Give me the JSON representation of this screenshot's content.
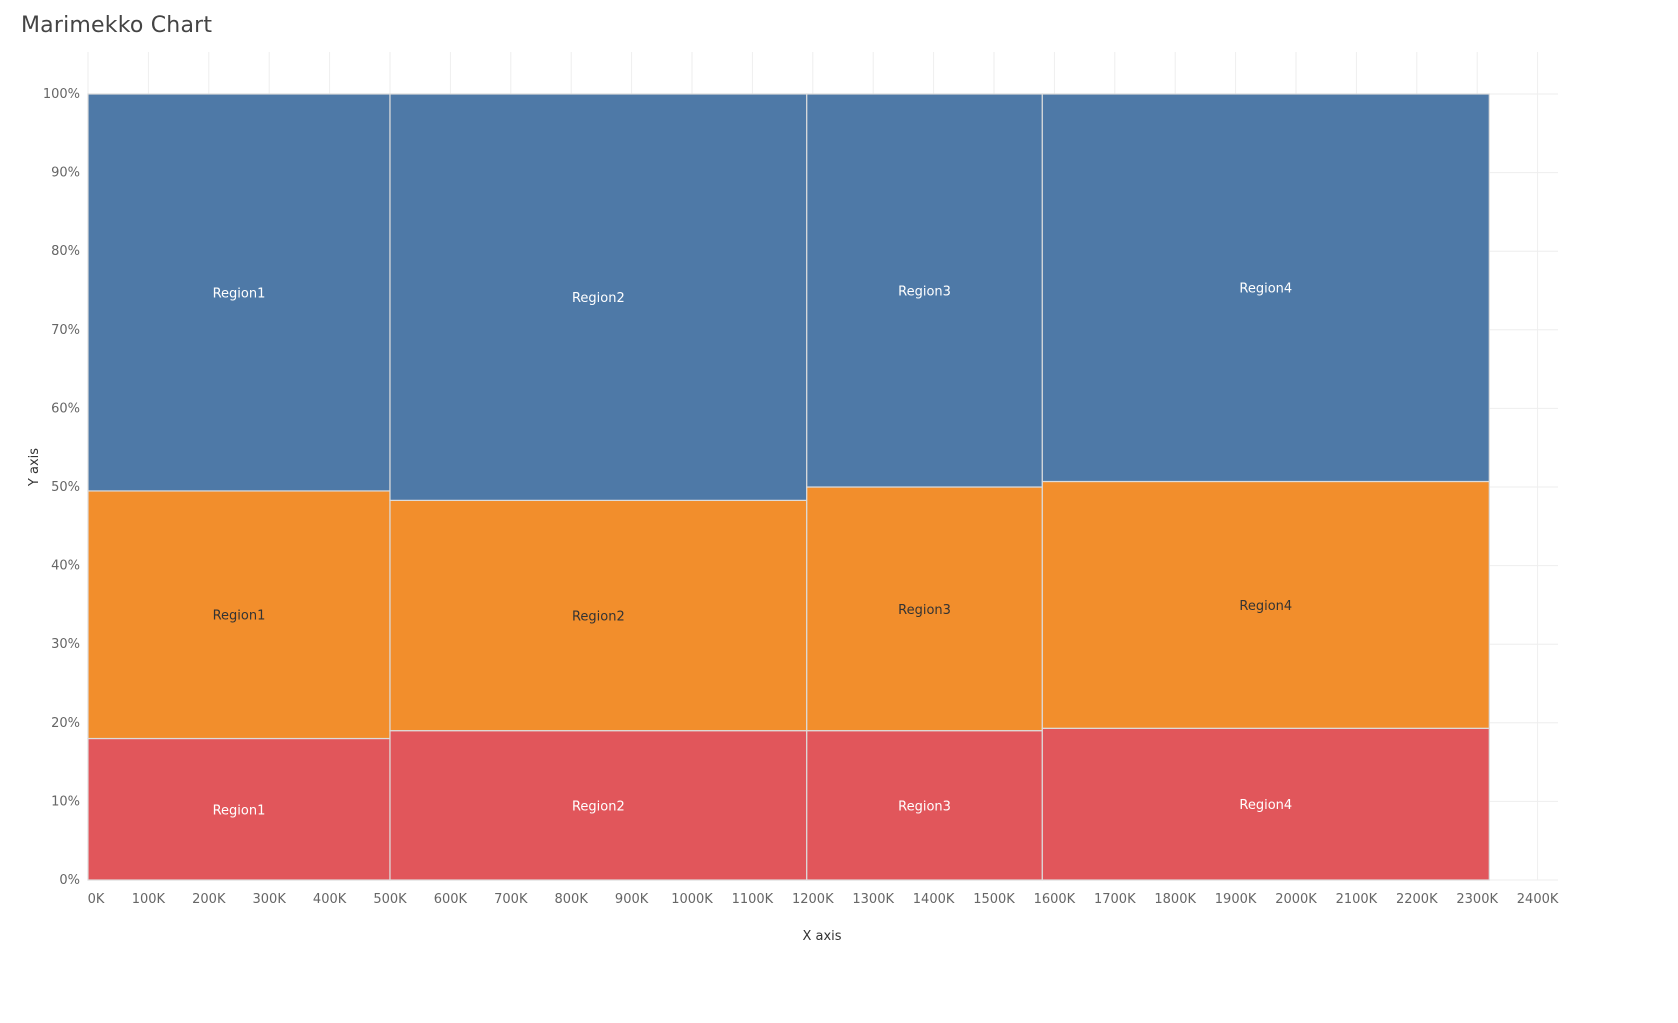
{
  "title": "Marimekko Chart",
  "chart_data": {
    "type": "marimekko",
    "title": "Marimekko Chart",
    "xlabel": "X axis",
    "ylabel": "Y axis",
    "xlim": [
      0,
      2400000
    ],
    "ylim": [
      0,
      100
    ],
    "x_ticks": [
      "0K",
      "100K",
      "200K",
      "300K",
      "400K",
      "500K",
      "600K",
      "700K",
      "800K",
      "900K",
      "1000K",
      "1100K",
      "1200K",
      "1300K",
      "1400K",
      "1500K",
      "1600K",
      "1700K",
      "1800K",
      "1900K",
      "2000K",
      "2100K",
      "2200K",
      "2300K",
      "2400K"
    ],
    "y_ticks": [
      "0%",
      "10%",
      "20%",
      "30%",
      "40%",
      "50%",
      "60%",
      "70%",
      "80%",
      "90%",
      "100%"
    ],
    "colors": {
      "bottom": "#e1565b",
      "middle": "#f28e2c",
      "top": "#4e79a7",
      "grid": "#eeeeee",
      "border": "#dcdcdc"
    },
    "columns": [
      {
        "name": "Region1",
        "x_start": 0,
        "x_end": 500000,
        "segments": [
          {
            "series": "bottom",
            "label": "Region1",
            "value": 18.0
          },
          {
            "series": "middle",
            "label": "Region1",
            "value": 31.5
          },
          {
            "series": "top",
            "label": "Region1",
            "value": 50.5
          }
        ]
      },
      {
        "name": "Region2",
        "x_start": 500000,
        "x_end": 1190000,
        "segments": [
          {
            "series": "bottom",
            "label": "Region2",
            "value": 19.0
          },
          {
            "series": "middle",
            "label": "Region2",
            "value": 29.3
          },
          {
            "series": "top",
            "label": "Region2",
            "value": 51.7
          }
        ]
      },
      {
        "name": "Region3",
        "x_start": 1190000,
        "x_end": 1580000,
        "segments": [
          {
            "series": "bottom",
            "label": "Region3",
            "value": 19.0
          },
          {
            "series": "middle",
            "label": "Region3",
            "value": 31.0
          },
          {
            "series": "top",
            "label": "Region3",
            "value": 50.0
          }
        ]
      },
      {
        "name": "Region4",
        "x_start": 1580000,
        "x_end": 2320000,
        "segments": [
          {
            "series": "bottom",
            "label": "Region4",
            "value": 19.3
          },
          {
            "series": "middle",
            "label": "Region4",
            "value": 31.4
          },
          {
            "series": "top",
            "label": "Region4",
            "value": 49.3
          }
        ]
      }
    ]
  }
}
